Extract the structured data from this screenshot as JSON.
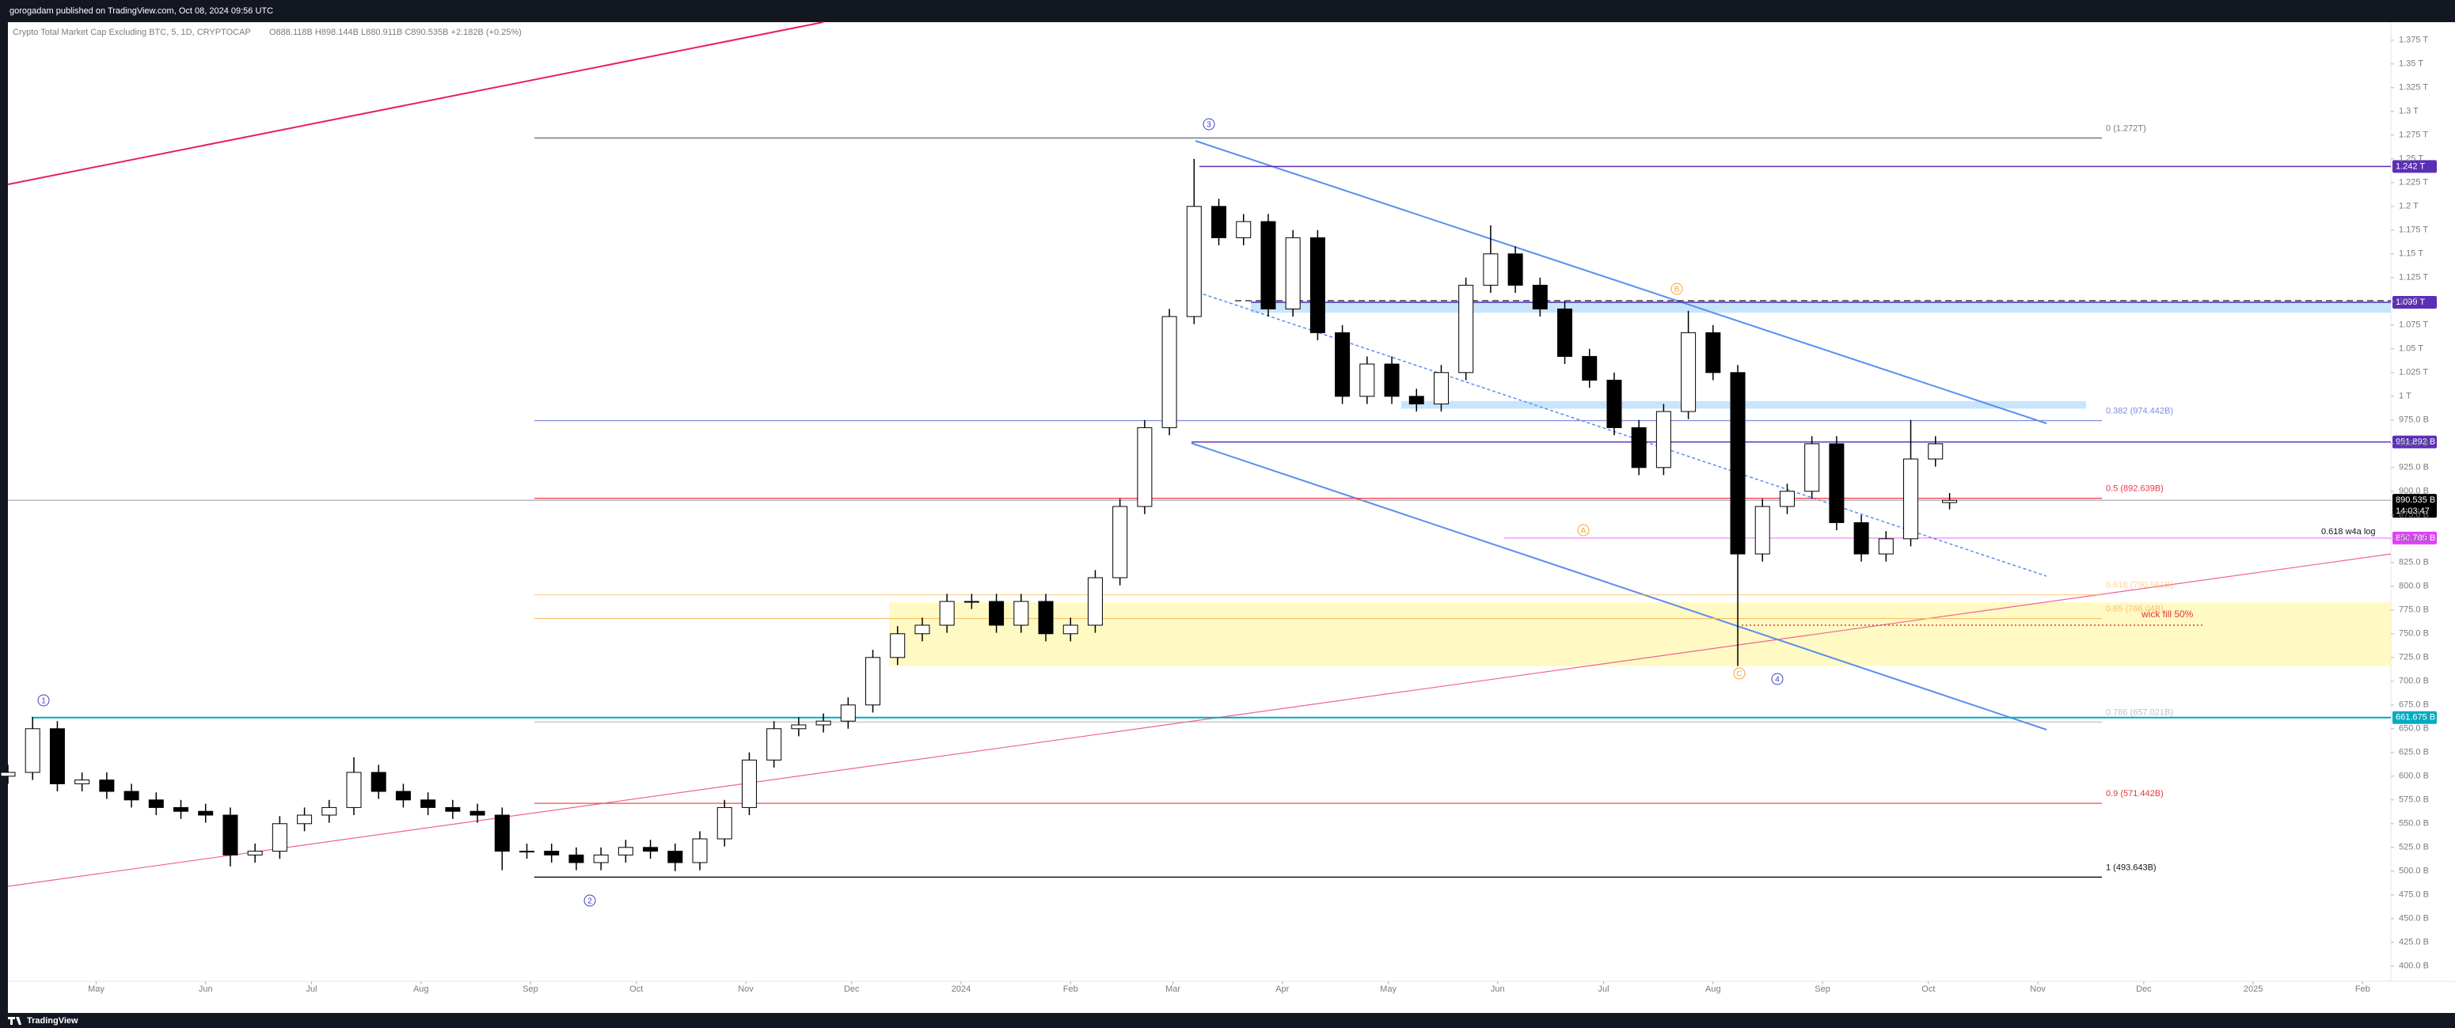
{
  "chart_data": {
    "type": "candlestick",
    "publisher": "gorogadam published on TradingView.com, Oct 08, 2024 09:56 UTC",
    "title": "Crypto Total Market Cap Excluding BTC, 5, 1D, CRYPTOCAP",
    "ohlc_line": "O888.118B H898.144B L880.911B C890.535B +2.182B (+0.25%)",
    "brand": "TradingView",
    "x": [
      -25,
      -18,
      -11,
      -4,
      3,
      10,
      17,
      24,
      31,
      38,
      45,
      52,
      59,
      66,
      73,
      80,
      87,
      94,
      101,
      108,
      115,
      122,
      129,
      136,
      143,
      150,
      157,
      164,
      171,
      178,
      185,
      192,
      199,
      206,
      213,
      220,
      227,
      234,
      241,
      248,
      255,
      262,
      269,
      276,
      283,
      290,
      297,
      304,
      311,
      318,
      325,
      332,
      339,
      346,
      353,
      360,
      367,
      374,
      381,
      388,
      395,
      402,
      409,
      416,
      423,
      430,
      437,
      444,
      451,
      458,
      465,
      472,
      479,
      486,
      493,
      500,
      507,
      514,
      521,
      525
    ],
    "open": [
      600,
      604,
      650,
      592,
      596,
      584,
      575,
      567,
      563,
      559,
      517,
      521,
      550,
      559,
      567,
      604,
      584,
      575,
      567,
      563,
      559,
      521,
      521,
      517,
      509,
      517,
      525,
      521,
      509,
      534,
      567,
      617,
      650,
      654,
      658,
      675,
      725,
      750,
      759,
      784,
      784,
      759,
      784,
      750,
      759,
      809,
      884,
      967,
      1084,
      1200,
      1167,
      1184,
      1092,
      1167,
      1067,
      1000,
      1034,
      1000,
      992,
      1025,
      1117,
      1150,
      1117,
      1092,
      1042,
      1017,
      967,
      925,
      984,
      1067,
      1025,
      834,
      884,
      900,
      950,
      867,
      834,
      850,
      934,
      888.118
    ],
    "high": [
      612,
      662,
      658,
      604,
      604,
      592,
      583,
      575,
      571,
      567,
      529,
      558,
      567,
      575,
      620,
      612,
      592,
      583,
      575,
      571,
      567,
      529,
      529,
      525,
      525,
      533,
      533,
      529,
      542,
      575,
      625,
      658,
      662,
      666,
      683,
      733,
      758,
      767,
      792,
      792,
      792,
      792,
      792,
      767,
      817,
      892,
      975,
      1092,
      1250,
      1208,
      1192,
      1192,
      1175,
      1175,
      1075,
      1042,
      1042,
      1008,
      1033,
      1125,
      1180,
      1158,
      1125,
      1100,
      1050,
      1025,
      975,
      992,
      1090,
      1075,
      1033,
      892,
      908,
      958,
      958,
      875,
      858,
      975,
      958,
      898.144
    ],
    "low": [
      592,
      596,
      584,
      584,
      576,
      567,
      559,
      555,
      551,
      505,
      509,
      513,
      542,
      551,
      559,
      576,
      567,
      559,
      555,
      551,
      501,
      513,
      509,
      501,
      501,
      509,
      513,
      500,
      501,
      526,
      559,
      609,
      642,
      646,
      650,
      667,
      717,
      742,
      751,
      776,
      751,
      751,
      742,
      742,
      751,
      801,
      876,
      959,
      1076,
      1159,
      1159,
      1084,
      1084,
      1059,
      992,
      992,
      992,
      984,
      984,
      1017,
      1109,
      1109,
      1084,
      1034,
      1009,
      959,
      917,
      917,
      976,
      1017,
      716,
      826,
      876,
      892,
      859,
      826,
      826,
      842,
      926,
      880.911
    ],
    "close": [
      604,
      650,
      592,
      596,
      584,
      575,
      567,
      563,
      559,
      517,
      521,
      550,
      559,
      567,
      604,
      584,
      575,
      567,
      563,
      559,
      521,
      521,
      517,
      509,
      517,
      525,
      521,
      509,
      534,
      567,
      617,
      650,
      654,
      658,
      675,
      725,
      750,
      759,
      784,
      784,
      759,
      784,
      750,
      759,
      809,
      884,
      967,
      1084,
      1200,
      1167,
      1184,
      1092,
      1167,
      1067,
      1000,
      1034,
      1000,
      992,
      1025,
      1117,
      1150,
      1117,
      1092,
      1042,
      1017,
      967,
      925,
      984,
      1067,
      1025,
      834,
      884,
      900,
      950,
      867,
      834,
      850,
      934,
      950,
      890.535
    ],
    "up_color": "#ffffff",
    "down_color": "#000000",
    "xlim": [
      -25,
      650
    ],
    "xticks": [
      {
        "value": 0,
        "label": "May"
      },
      {
        "value": 31,
        "label": "Jun"
      },
      {
        "value": 61,
        "label": "Jul"
      },
      {
        "value": 92,
        "label": "Aug"
      },
      {
        "value": 123,
        "label": "Sep"
      },
      {
        "value": 153,
        "label": "Oct"
      },
      {
        "value": 184,
        "label": "Nov"
      },
      {
        "value": 214,
        "label": "Dec"
      },
      {
        "value": 245,
        "label": "2024"
      },
      {
        "value": 276,
        "label": "Feb"
      },
      {
        "value": 305,
        "label": "Mar"
      },
      {
        "value": 336,
        "label": "Apr"
      },
      {
        "value": 366,
        "label": "May"
      },
      {
        "value": 397,
        "label": "Jun"
      },
      {
        "value": 427,
        "label": "Jul"
      },
      {
        "value": 458,
        "label": "Aug"
      },
      {
        "value": 489,
        "label": "Sep"
      },
      {
        "value": 519,
        "label": "Oct"
      },
      {
        "value": 550,
        "label": "Nov"
      },
      {
        "value": 580,
        "label": "Dec"
      },
      {
        "value": 611,
        "label": "2025"
      },
      {
        "value": 642,
        "label": "Feb"
      }
    ],
    "ylim": [
      384,
      1394
    ],
    "yticks": [
      {
        "value": 400,
        "label": "400.0 B"
      },
      {
        "value": 425,
        "label": "425.0 B"
      },
      {
        "value": 450,
        "label": "450.0 B"
      },
      {
        "value": 475,
        "label": "475.0 B"
      },
      {
        "value": 500,
        "label": "500.0 B"
      },
      {
        "value": 525,
        "label": "525.0 B"
      },
      {
        "value": 550,
        "label": "550.0 B"
      },
      {
        "value": 575,
        "label": "575.0 B"
      },
      {
        "value": 600,
        "label": "600.0 B"
      },
      {
        "value": 625,
        "label": "625.0 B"
      },
      {
        "value": 650,
        "label": "650.0 B"
      },
      {
        "value": 675,
        "label": "675.0 B"
      },
      {
        "value": 700,
        "label": "700.0 B"
      },
      {
        "value": 725,
        "label": "725.0 B"
      },
      {
        "value": 750,
        "label": "750.0 B"
      },
      {
        "value": 775,
        "label": "775.0 B"
      },
      {
        "value": 800,
        "label": "800.0 B"
      },
      {
        "value": 825,
        "label": "825.0 B"
      },
      {
        "value": 850,
        "label": "850.0 B"
      },
      {
        "value": 875,
        "label": "875.0 B"
      },
      {
        "value": 900,
        "label": "900.0 B"
      },
      {
        "value": 925,
        "label": "925.0 B"
      },
      {
        "value": 950,
        "label": "950.0 B"
      },
      {
        "value": 975,
        "label": "975.0 B"
      },
      {
        "value": 1000,
        "label": "1 T"
      },
      {
        "value": 1025,
        "label": "1.025 T"
      },
      {
        "value": 1050,
        "label": "1.05 T"
      },
      {
        "value": 1075,
        "label": "1.075 T"
      },
      {
        "value": 1100,
        "label": "1.1 T"
      },
      {
        "value": 1125,
        "label": "1.125 T"
      },
      {
        "value": 1150,
        "label": "1.15 T"
      },
      {
        "value": 1175,
        "label": "1.175 T"
      },
      {
        "value": 1200,
        "label": "1.2 T"
      },
      {
        "value": 1225,
        "label": "1.225 T"
      },
      {
        "value": 1250,
        "label": "1.25 T"
      },
      {
        "value": 1275,
        "label": "1.275 T"
      },
      {
        "value": 1300,
        "label": "1.3 T"
      },
      {
        "value": 1325,
        "label": "1.325 T"
      },
      {
        "value": 1350,
        "label": "1.35 T"
      },
      {
        "value": 1375,
        "label": "1.375 T"
      }
    ],
    "grid": false,
    "fib_levels": [
      {
        "value": 1272,
        "label": "0 (1.272T)",
        "color": "#787b86"
      },
      {
        "value": 974.442,
        "label": "0.382 (974.442B)",
        "color": "#7e8ce0"
      },
      {
        "value": 892.639,
        "label": "0.5 (892.639B)",
        "color": "#f23645"
      },
      {
        "value": 790.961,
        "label": "0.618 (790.961B)",
        "color": "#ffb74d"
      },
      {
        "value": 766.04,
        "label": "0.65 (766.04B)",
        "color": "#f5c26b"
      },
      {
        "value": 657.021,
        "label": "0.786 (657.021B)",
        "color": "#9598a1"
      },
      {
        "value": 571.442,
        "label": "0.9 (571.442B)",
        "color": "#e53935"
      },
      {
        "value": 493.643,
        "label": "1 (493.643B)",
        "color": "#131722"
      }
    ],
    "price_levels": [
      {
        "value": 1242,
        "label": "1.242 T",
        "color": "#5b2fb5"
      },
      {
        "value": 1099,
        "label": "1.099 T",
        "color": "#5b2fb5"
      },
      {
        "value": 951.892,
        "label": "951.892 B",
        "color": "#5b2fb5"
      },
      {
        "value": 850.789,
        "label": "850.789 B",
        "color": "#e040fb"
      },
      {
        "value": 661.675,
        "label": "661.675 B",
        "color": "#00acc1"
      }
    ],
    "last_price": {
      "value": 890.535,
      "label": "890.535 B",
      "countdown": "14:03:47"
    },
    "zones": [
      {
        "from": 716,
        "to": 783,
        "color": "#fff59d"
      },
      {
        "from": 1088,
        "to": 1100,
        "color": "#bbdefb"
      },
      {
        "from": 987,
        "to": 995,
        "color": "#bbdefb"
      }
    ],
    "wave_labels": [
      "1",
      "2",
      "3",
      "4",
      "A",
      "B",
      "C"
    ],
    "notes": [
      "wick fill 50%",
      "0.618  w4a log"
    ]
  }
}
